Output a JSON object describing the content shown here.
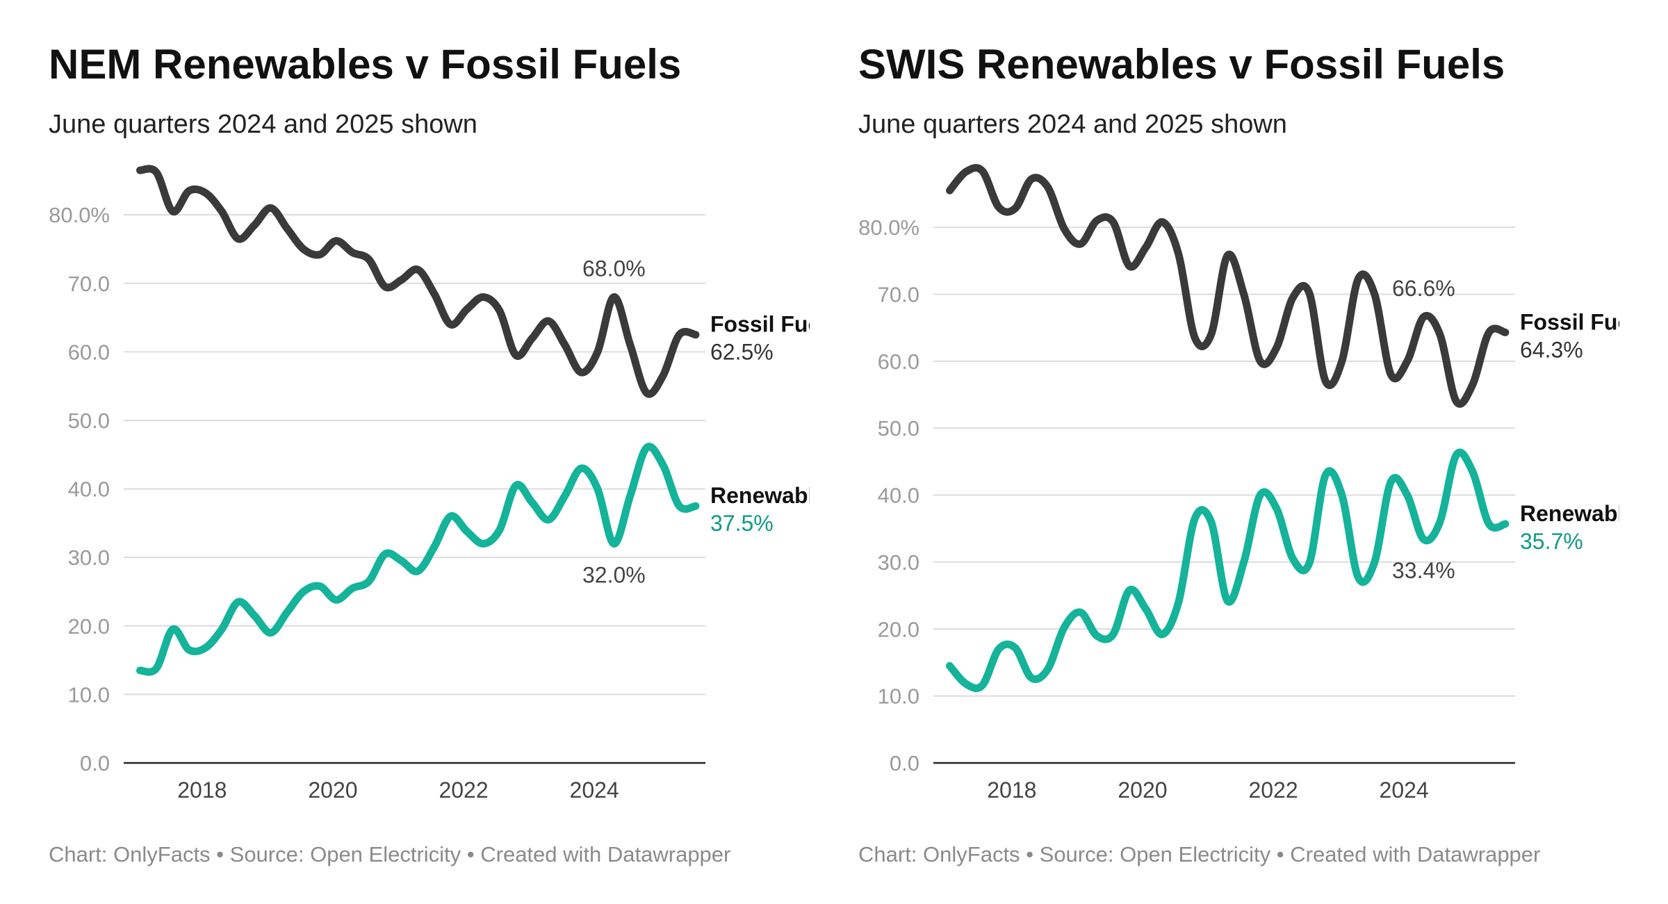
{
  "chart_data": [
    {
      "type": "line",
      "title": "NEM Renewables v Fossil Fuels",
      "subtitle": "June quarters 2024 and 2025 shown",
      "footer": "Chart: OnlyFacts • Source: Open Electricity • Created with Datawrapper",
      "ylim": [
        0,
        86
      ],
      "xlim": [
        2017.0,
        2025.9
      ],
      "yticks": [
        "80.0%",
        "70.0",
        "60.0",
        "50.0",
        "40.0",
        "30.0",
        "20.0",
        "10.0",
        "0.0"
      ],
      "ytick_values": [
        80,
        70,
        60,
        50,
        40,
        30,
        20,
        10,
        0
      ],
      "xticks": [
        "2018",
        "2020",
        "2022",
        "2024"
      ],
      "xtick_values": [
        2018.2,
        2020.2,
        2022.2,
        2024.2
      ],
      "grid": true,
      "series": [
        {
          "name": "Fossil Fuels",
          "end_label": "62.5%",
          "color": "#3a3a3a",
          "x": [
            2017.25,
            2017.5,
            2017.75,
            2018.0,
            2018.25,
            2018.5,
            2018.75,
            2019.0,
            2019.25,
            2019.5,
            2019.75,
            2020.0,
            2020.25,
            2020.5,
            2020.75,
            2021.0,
            2021.25,
            2021.5,
            2021.75,
            2022.0,
            2022.25,
            2022.5,
            2022.75,
            2023.0,
            2023.25,
            2023.5,
            2023.75,
            2024.0,
            2024.25,
            2024.5,
            2024.75,
            2025.0,
            2025.25,
            2025.5,
            2025.75
          ],
          "values": [
            86.5,
            86.2,
            80.5,
            83.5,
            83.2,
            80.5,
            76.5,
            78.5,
            81.0,
            78.0,
            75.0,
            74.2,
            76.2,
            74.5,
            73.5,
            69.5,
            70.5,
            72.0,
            68.5,
            64.0,
            66.2,
            68.0,
            66.0,
            59.5,
            62.0,
            64.5,
            61.0,
            57.0,
            60.0,
            68.0,
            61.0,
            54.0,
            56.5,
            62.5,
            62.5
          ]
        },
        {
          "name": "Renewables",
          "end_label": "37.5%",
          "color": "#14b39a",
          "x": [
            2017.25,
            2017.5,
            2017.75,
            2018.0,
            2018.25,
            2018.5,
            2018.75,
            2019.0,
            2019.25,
            2019.5,
            2019.75,
            2020.0,
            2020.25,
            2020.5,
            2020.75,
            2021.0,
            2021.25,
            2021.5,
            2021.75,
            2022.0,
            2022.25,
            2022.5,
            2022.75,
            2023.0,
            2023.25,
            2023.5,
            2023.75,
            2024.0,
            2024.25,
            2024.5,
            2024.75,
            2025.0,
            2025.25,
            2025.5,
            2025.75
          ],
          "values": [
            13.5,
            13.8,
            19.5,
            16.5,
            16.8,
            19.5,
            23.5,
            21.5,
            19.0,
            22.0,
            25.0,
            25.8,
            23.8,
            25.5,
            26.5,
            30.5,
            29.5,
            28.0,
            31.5,
            36.0,
            33.8,
            32.0,
            34.0,
            40.5,
            38.0,
            35.5,
            39.0,
            43.0,
            40.0,
            32.0,
            39.0,
            46.0,
            43.5,
            37.5,
            37.5
          ]
        }
      ],
      "annotations": [
        {
          "text": "68.0%",
          "x": 2024.5,
          "value": 68.0,
          "position": "above"
        },
        {
          "text": "32.0%",
          "x": 2024.5,
          "value": 32.0,
          "position": "below"
        }
      ]
    },
    {
      "type": "line",
      "title": "SWIS Renewables v Fossil Fuels",
      "subtitle": "June quarters 2024 and 2025 shown",
      "footer": "Chart: OnlyFacts • Source: Open Electricity • Created with Datawrapper",
      "ylim": [
        0,
        88
      ],
      "xlim": [
        2017.0,
        2025.9
      ],
      "yticks": [
        "80.0%",
        "70.0",
        "60.0",
        "50.0",
        "40.0",
        "30.0",
        "20.0",
        "10.0",
        "0.0"
      ],
      "ytick_values": [
        80,
        70,
        60,
        50,
        40,
        30,
        20,
        10,
        0
      ],
      "xticks": [
        "2018",
        "2020",
        "2022",
        "2024"
      ],
      "xtick_values": [
        2018.2,
        2020.2,
        2022.2,
        2024.2
      ],
      "grid": true,
      "series": [
        {
          "name": "Fossil Fuels",
          "end_label": "64.3%",
          "color": "#3a3a3a",
          "x": [
            2017.25,
            2017.5,
            2017.75,
            2018.0,
            2018.25,
            2018.5,
            2018.75,
            2019.0,
            2019.25,
            2019.5,
            2019.75,
            2020.0,
            2020.25,
            2020.5,
            2020.75,
            2021.0,
            2021.25,
            2021.5,
            2021.75,
            2022.0,
            2022.25,
            2022.5,
            2022.75,
            2023.0,
            2023.25,
            2023.5,
            2023.75,
            2024.0,
            2024.25,
            2024.5,
            2024.75,
            2025.0,
            2025.25,
            2025.5,
            2025.75
          ],
          "values": [
            85.5,
            88.3,
            88.4,
            83.0,
            82.8,
            87.2,
            86.0,
            79.8,
            77.5,
            81.0,
            80.8,
            74.2,
            77.0,
            80.8,
            76.0,
            63.5,
            64.0,
            75.8,
            70.0,
            60.0,
            62.0,
            69.5,
            70.2,
            57.0,
            60.0,
            72.3,
            70.0,
            58.0,
            60.0,
            66.6,
            64.0,
            54.0,
            56.5,
            64.3,
            64.3
          ]
        },
        {
          "name": "Renewables",
          "end_label": "35.7%",
          "color": "#14b39a",
          "x": [
            2017.25,
            2017.5,
            2017.75,
            2018.0,
            2018.25,
            2018.5,
            2018.75,
            2019.0,
            2019.25,
            2019.5,
            2019.75,
            2020.0,
            2020.25,
            2020.5,
            2020.75,
            2021.0,
            2021.25,
            2021.5,
            2021.75,
            2022.0,
            2022.25,
            2022.5,
            2022.75,
            2023.0,
            2023.25,
            2023.5,
            2023.75,
            2024.0,
            2024.25,
            2024.5,
            2024.75,
            2025.0,
            2025.25,
            2025.5,
            2025.75
          ],
          "values": [
            14.5,
            11.8,
            11.6,
            17.0,
            17.2,
            12.7,
            14.0,
            20.2,
            22.5,
            19.0,
            19.2,
            25.8,
            23.0,
            19.2,
            24.0,
            36.5,
            36.0,
            24.2,
            30.0,
            40.0,
            38.0,
            30.5,
            29.8,
            43.0,
            40.0,
            27.7,
            30.0,
            42.0,
            40.0,
            33.4,
            36.0,
            46.0,
            43.5,
            35.7,
            35.7
          ]
        }
      ],
      "annotations": [
        {
          "text": "66.6%",
          "x": 2024.5,
          "value": 66.6,
          "position": "above"
        },
        {
          "text": "33.4%",
          "x": 2024.5,
          "value": 33.4,
          "position": "below"
        }
      ]
    }
  ]
}
